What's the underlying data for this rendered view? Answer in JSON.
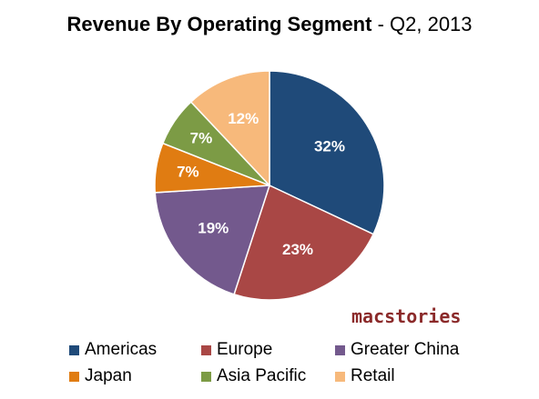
{
  "chart_data": {
    "type": "pie",
    "title": "Revenue By Operating Segment",
    "subtitle": "- Q2, 2013",
    "slices": [
      {
        "label": "Americas",
        "value": 32,
        "display": "32%",
        "color": "#1f4a79"
      },
      {
        "label": "Europe",
        "value": 23,
        "display": "23%",
        "color": "#a94745"
      },
      {
        "label": "Greater China",
        "value": 19,
        "display": "19%",
        "color": "#73598d"
      },
      {
        "label": "Japan",
        "value": 7,
        "display": "7%",
        "color": "#e07c12"
      },
      {
        "label": "Asia Pacific",
        "value": 7,
        "display": "7%",
        "color": "#7c9b45"
      },
      {
        "label": "Retail",
        "value": 12,
        "display": "12%",
        "color": "#f7b97b"
      }
    ],
    "start_angle": "12 o'clock",
    "direction": "clockwise",
    "legend_position": "bottom"
  },
  "brand": {
    "text": "macstories"
  }
}
